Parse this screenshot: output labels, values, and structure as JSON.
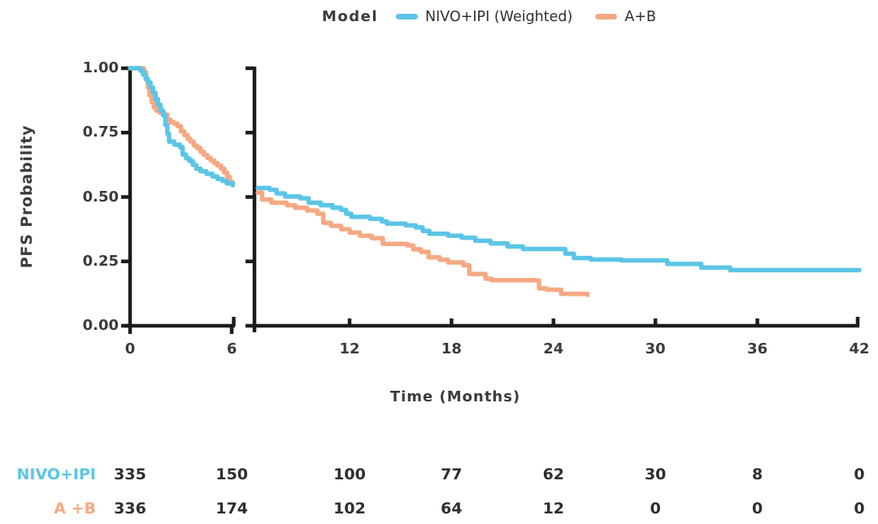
{
  "legend": {
    "title": "Model",
    "series": [
      {
        "label": "NIVO+IPI (Weighted)",
        "color": "#5bc5e6"
      },
      {
        "label": "A+B",
        "color": "#f5a983"
      }
    ]
  },
  "axes": {
    "y_label": "PFS Probability",
    "x_label": "Time (Months)",
    "y_tick_labels": [
      "1.00",
      "0.75",
      "0.50",
      "0.25",
      "0.00"
    ],
    "y_tick_values": [
      1.0,
      0.75,
      0.5,
      0.25,
      0.0
    ],
    "x_tick_labels": [
      "0",
      "6",
      "12",
      "18",
      "24",
      "30",
      "36",
      "42"
    ],
    "x_tick_months": [
      0,
      6,
      12,
      18,
      24,
      30,
      36,
      42
    ]
  },
  "risk_table": {
    "rows": [
      {
        "label": "NIVO+IPI",
        "color": "#5bc5e6",
        "values": [
          "335",
          "150",
          "100",
          "77",
          "62",
          "30",
          "8",
          "0"
        ]
      },
      {
        "label": "A +B",
        "color": "#f5a983",
        "values": [
          "336",
          "174",
          "102",
          "64",
          "12",
          "0",
          "0",
          "0"
        ]
      }
    ]
  },
  "chart_data": {
    "type": "line",
    "subtype": "kaplan-meier-step",
    "title": "",
    "xlabel": "Time (Months)",
    "ylabel": "PFS Probability",
    "ylim": [
      0,
      1
    ],
    "xlim": [
      0,
      42
    ],
    "x_axis_break_between": [
      6,
      6.6
    ],
    "grid": false,
    "legend_position": "top-center",
    "y_ticks": [
      1.0,
      0.75,
      0.5,
      0.25,
      0.0
    ],
    "x_ticks": [
      0,
      6,
      12,
      18,
      24,
      30,
      36,
      42
    ],
    "series": [
      {
        "name": "NIVO+IPI (Weighted)",
        "color": "#5bc5e6",
        "segments": {
          "left": [
            [
              0,
              1.0
            ],
            [
              0.5,
              1.0
            ],
            [
              0.62,
              0.99
            ],
            [
              0.78,
              0.975
            ],
            [
              0.92,
              0.96
            ],
            [
              1.05,
              0.945
            ],
            [
              1.2,
              0.925
            ],
            [
              1.35,
              0.905
            ],
            [
              1.5,
              0.88
            ],
            [
              1.65,
              0.858
            ],
            [
              1.8,
              0.835
            ],
            [
              1.95,
              0.817
            ],
            [
              2.08,
              0.78
            ],
            [
              2.2,
              0.745
            ],
            [
              2.3,
              0.715
            ],
            [
              2.6,
              0.703
            ],
            [
              2.95,
              0.693
            ],
            [
              3.1,
              0.665
            ],
            [
              3.3,
              0.65
            ],
            [
              3.5,
              0.64
            ],
            [
              3.7,
              0.625
            ],
            [
              3.9,
              0.61
            ],
            [
              4.15,
              0.6
            ],
            [
              4.5,
              0.59
            ],
            [
              4.85,
              0.58
            ],
            [
              5.15,
              0.57
            ],
            [
              5.45,
              0.562
            ],
            [
              5.7,
              0.553
            ],
            [
              6.05,
              0.545
            ]
          ],
          "right": [
            [
              6.6,
              0.535
            ],
            [
              7.3,
              0.528
            ],
            [
              7.7,
              0.514
            ],
            [
              8.2,
              0.502
            ],
            [
              9.1,
              0.495
            ],
            [
              9.6,
              0.478
            ],
            [
              10.3,
              0.468
            ],
            [
              11.0,
              0.458
            ],
            [
              11.5,
              0.45
            ],
            [
              11.8,
              0.435
            ],
            [
              12.1,
              0.423
            ],
            [
              13.2,
              0.415
            ],
            [
              13.9,
              0.405
            ],
            [
              14.2,
              0.397
            ],
            [
              15.3,
              0.39
            ],
            [
              15.9,
              0.382
            ],
            [
              16.3,
              0.368
            ],
            [
              16.7,
              0.357
            ],
            [
              17.8,
              0.35
            ],
            [
              18.6,
              0.342
            ],
            [
              19.4,
              0.33
            ],
            [
              20.3,
              0.32
            ],
            [
              21.3,
              0.308
            ],
            [
              22.2,
              0.298
            ],
            [
              24.7,
              0.28
            ],
            [
              25.2,
              0.263
            ],
            [
              26.2,
              0.257
            ],
            [
              28.0,
              0.254
            ],
            [
              30.7,
              0.24
            ],
            [
              32.7,
              0.226
            ],
            [
              34.4,
              0.216
            ],
            [
              42.0,
              0.216
            ]
          ]
        },
        "number_at_risk": [
          335,
          150,
          100,
          77,
          62,
          30,
          8,
          0
        ]
      },
      {
        "name": "A+B",
        "color": "#f5a983",
        "segments": {
          "left": [
            [
              0,
              1.0
            ],
            [
              0.7,
              1.0
            ],
            [
              0.82,
              0.985
            ],
            [
              0.95,
              0.955
            ],
            [
              1.05,
              0.925
            ],
            [
              1.15,
              0.895
            ],
            [
              1.27,
              0.868
            ],
            [
              1.4,
              0.848
            ],
            [
              1.55,
              0.835
            ],
            [
              1.75,
              0.827
            ],
            [
              2.0,
              0.82
            ],
            [
              2.2,
              0.8
            ],
            [
              2.38,
              0.79
            ],
            [
              2.6,
              0.785
            ],
            [
              2.8,
              0.775
            ],
            [
              3.0,
              0.755
            ],
            [
              3.2,
              0.74
            ],
            [
              3.4,
              0.725
            ],
            [
              3.57,
              0.715
            ],
            [
              3.75,
              0.7
            ],
            [
              3.95,
              0.69
            ],
            [
              4.15,
              0.675
            ],
            [
              4.35,
              0.663
            ],
            [
              4.55,
              0.652
            ],
            [
              4.75,
              0.642
            ],
            [
              4.95,
              0.632
            ],
            [
              5.15,
              0.622
            ],
            [
              5.35,
              0.61
            ],
            [
              5.55,
              0.595
            ],
            [
              5.72,
              0.578
            ],
            [
              5.88,
              0.558
            ],
            [
              6.05,
              0.55
            ]
          ],
          "right": [
            [
              6.6,
              0.517
            ],
            [
              6.85,
              0.49
            ],
            [
              7.4,
              0.478
            ],
            [
              8.3,
              0.468
            ],
            [
              8.8,
              0.458
            ],
            [
              9.5,
              0.448
            ],
            [
              10.1,
              0.435
            ],
            [
              10.45,
              0.4
            ],
            [
              10.9,
              0.388
            ],
            [
              11.5,
              0.375
            ],
            [
              12.0,
              0.362
            ],
            [
              12.6,
              0.35
            ],
            [
              13.3,
              0.34
            ],
            [
              13.95,
              0.318
            ],
            [
              15.4,
              0.312
            ],
            [
              15.75,
              0.297
            ],
            [
              16.2,
              0.287
            ],
            [
              16.65,
              0.266
            ],
            [
              17.3,
              0.256
            ],
            [
              17.8,
              0.246
            ],
            [
              18.7,
              0.235
            ],
            [
              19.05,
              0.201
            ],
            [
              20.0,
              0.183
            ],
            [
              20.35,
              0.177
            ],
            [
              22.95,
              0.176
            ],
            [
              23.15,
              0.145
            ],
            [
              23.6,
              0.14
            ],
            [
              24.45,
              0.124
            ],
            [
              26.0,
              0.12
            ]
          ]
        },
        "number_at_risk": [
          336,
          174,
          102,
          64,
          12,
          0,
          0,
          0
        ]
      }
    ]
  }
}
